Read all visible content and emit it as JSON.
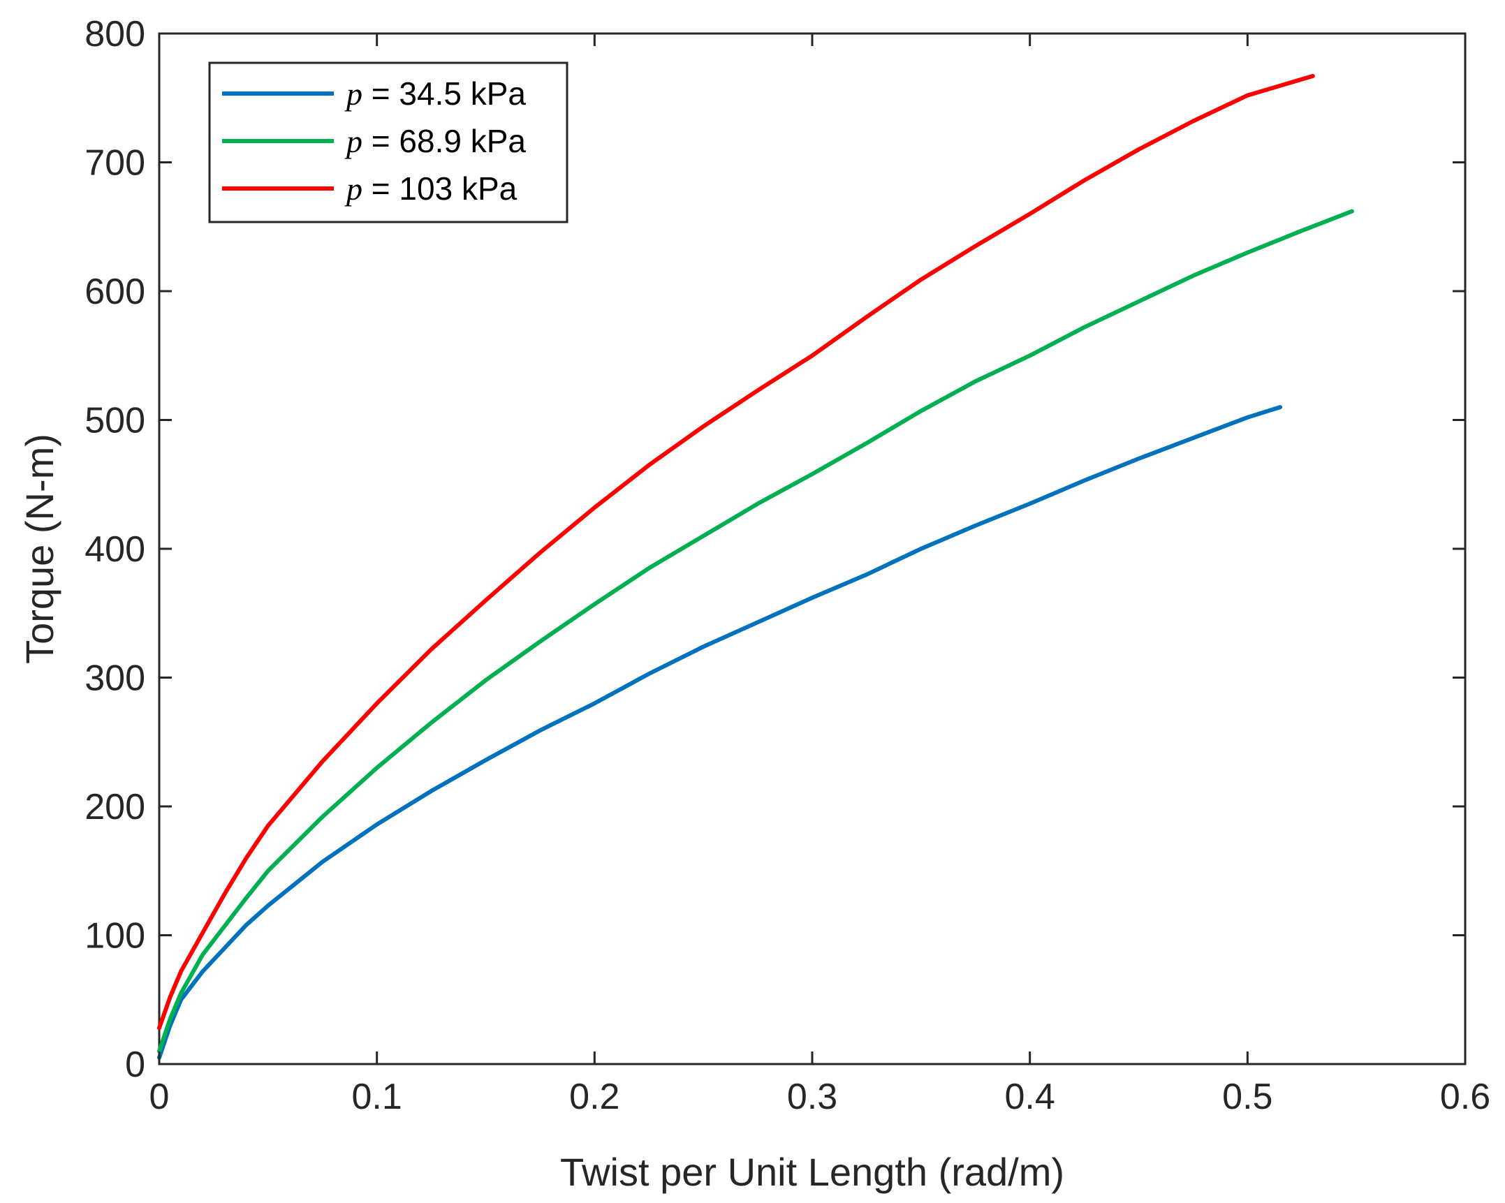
{
  "chart_data": {
    "type": "line",
    "title": "",
    "xlabel": "Twist per Unit Length (rad/m)",
    "ylabel": "Torque (N-m)",
    "xlim": [
      0,
      0.6
    ],
    "ylim": [
      0,
      800
    ],
    "xticks": [
      0,
      0.1,
      0.2,
      0.3,
      0.4,
      0.5,
      0.6
    ],
    "xtick_labels": [
      "0",
      "0.1",
      "0.2",
      "0.3",
      "0.4",
      "0.5",
      "0.6"
    ],
    "yticks": [
      0,
      100,
      200,
      300,
      400,
      500,
      600,
      700,
      800
    ],
    "ytick_labels": [
      "0",
      "100",
      "200",
      "300",
      "400",
      "500",
      "600",
      "700",
      "800"
    ],
    "grid": false,
    "legend_position": "top-left",
    "series": [
      {
        "name": "p = 34.5 kPa",
        "legend_var": "p",
        "legend_rest": " = 34.5 kPa",
        "color": "#0072BD",
        "x": [
          0.0,
          0.005,
          0.01,
          0.02,
          0.03,
          0.04,
          0.05,
          0.075,
          0.1,
          0.125,
          0.15,
          0.175,
          0.2,
          0.225,
          0.25,
          0.275,
          0.3,
          0.325,
          0.35,
          0.375,
          0.4,
          0.425,
          0.45,
          0.475,
          0.5,
          0.515
        ],
        "y": [
          5,
          30,
          50,
          72,
          90,
          108,
          123,
          157,
          186,
          212,
          236,
          259,
          280,
          303,
          324,
          343,
          362,
          380,
          400,
          418,
          435,
          453,
          470,
          486,
          502,
          510
        ]
      },
      {
        "name": "p = 68.9 kPa",
        "legend_var": "p",
        "legend_rest": " = 68.9 kPa",
        "color": "#00B050",
        "x": [
          0.0,
          0.005,
          0.01,
          0.02,
          0.03,
          0.04,
          0.05,
          0.075,
          0.1,
          0.125,
          0.15,
          0.175,
          0.2,
          0.225,
          0.25,
          0.275,
          0.3,
          0.325,
          0.35,
          0.375,
          0.4,
          0.425,
          0.45,
          0.475,
          0.5,
          0.525,
          0.548
        ],
        "y": [
          10,
          35,
          55,
          85,
          107,
          129,
          150,
          192,
          230,
          265,
          298,
          328,
          357,
          385,
          410,
          435,
          458,
          482,
          507,
          530,
          550,
          572,
          592,
          612,
          630,
          647,
          662
        ]
      },
      {
        "name": "p = 103 kPa",
        "legend_var": "p",
        "legend_rest": " = 103 kPa",
        "color": "#FF0000",
        "x": [
          0.0,
          0.005,
          0.01,
          0.02,
          0.03,
          0.04,
          0.05,
          0.075,
          0.1,
          0.125,
          0.15,
          0.175,
          0.2,
          0.225,
          0.25,
          0.275,
          0.3,
          0.325,
          0.35,
          0.375,
          0.4,
          0.425,
          0.45,
          0.475,
          0.5,
          0.53
        ],
        "y": [
          28,
          52,
          72,
          102,
          132,
          160,
          185,
          235,
          280,
          322,
          360,
          397,
          432,
          465,
          495,
          523,
          550,
          580,
          609,
          635,
          660,
          686,
          710,
          732,
          752,
          767
        ]
      }
    ]
  }
}
